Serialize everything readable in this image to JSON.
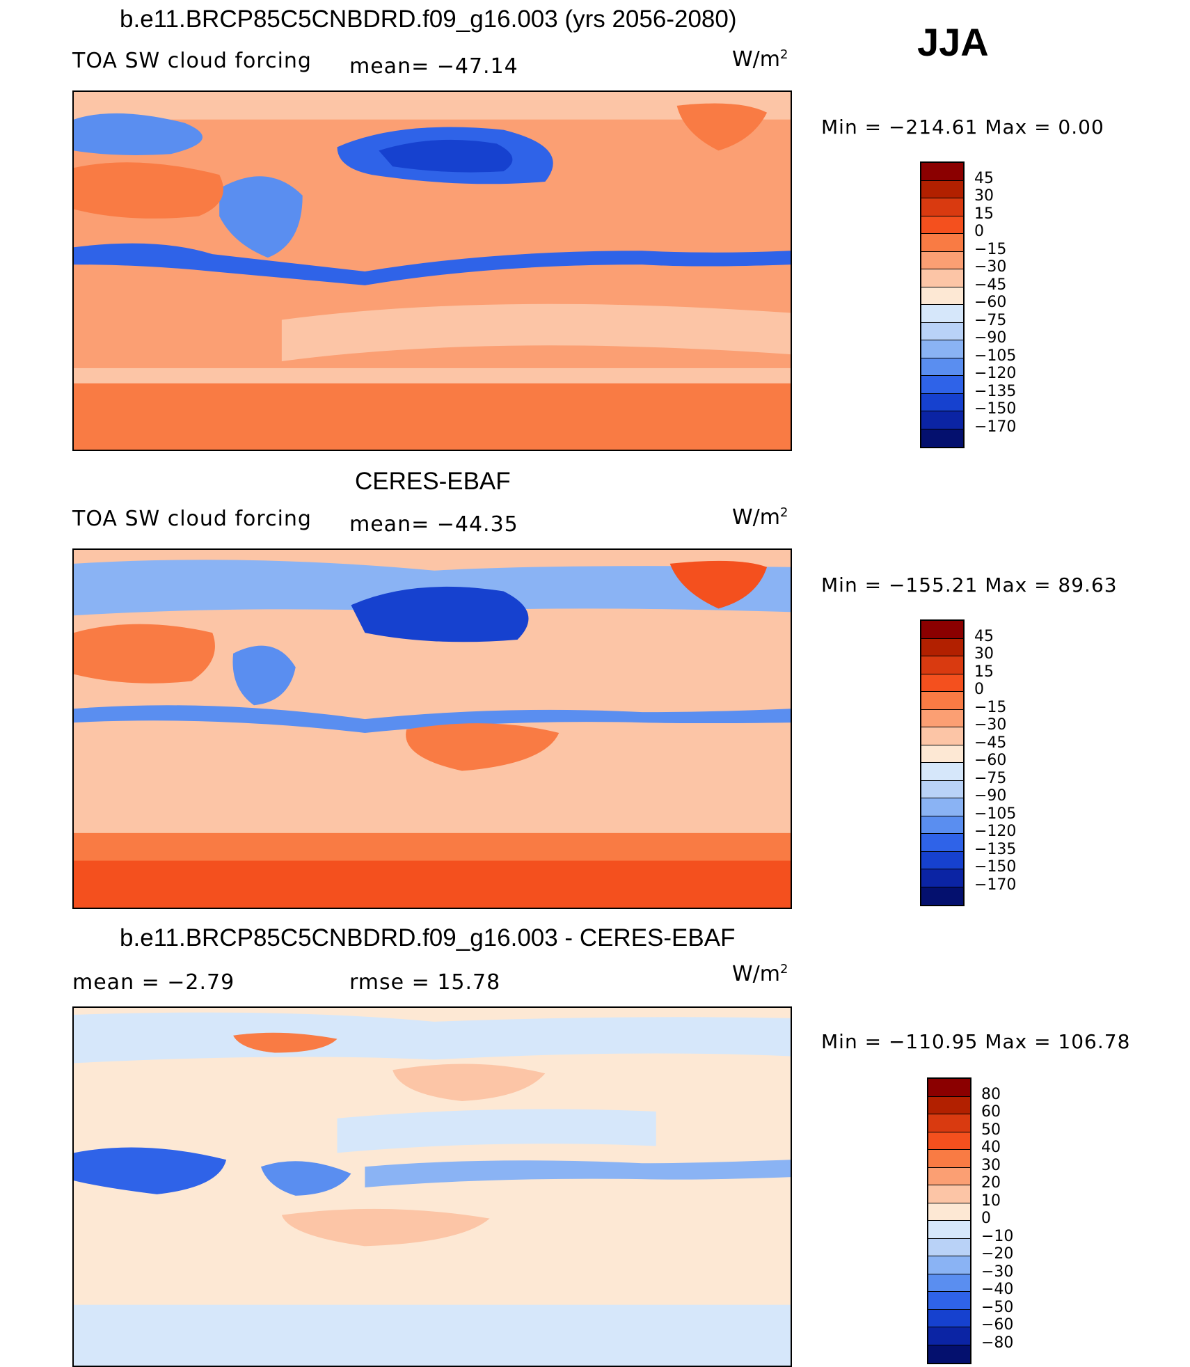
{
  "season": "JJA",
  "units": "W/m",
  "units_sup": "2",
  "panels": [
    {
      "title": "b.e11.BRCP85C5CNBDRD.f09_g16.003 (yrs 2056-2080)",
      "left_label": "TOA SW cloud forcing",
      "mid_label": "mean= −47.14",
      "minmax": "Min = −214.61 Max =    0.00",
      "levels": [
        "45",
        "30",
        "15",
        "0",
        "−15",
        "−30",
        "−45",
        "−60",
        "−75",
        "−90",
        "−105",
        "−120",
        "−135",
        "−150",
        "−170"
      ]
    },
    {
      "title": "CERES-EBAF",
      "left_label": "TOA SW cloud forcing",
      "mid_label": "mean= −44.35",
      "minmax": "Min = −155.21 Max =   89.63",
      "levels": [
        "45",
        "30",
        "15",
        "0",
        "−15",
        "−30",
        "−45",
        "−60",
        "−75",
        "−90",
        "−105",
        "−120",
        "−135",
        "−150",
        "−170"
      ]
    },
    {
      "title": "b.e11.BRCP85C5CNBDRD.f09_g16.003 - CERES-EBAF",
      "left_label": "mean =    −2.79",
      "mid_label": "rmse =    15.78",
      "minmax": "Min = −110.95 Max = 106.78",
      "levels": [
        "80",
        "60",
        "50",
        "40",
        "30",
        "20",
        "10",
        "0",
        "−10",
        "−20",
        "−30",
        "−40",
        "−50",
        "−60",
        "−80"
      ]
    }
  ],
  "colors": {
    "abs_scale": [
      "#8b0000",
      "#b22000",
      "#d93a10",
      "#f4501e",
      "#f97b44",
      "#fb9f73",
      "#fcc5a6",
      "#fde8d4",
      "#d6e7fa",
      "#b9d2f7",
      "#8ab3f4",
      "#5a8ef0",
      "#2f63e8",
      "#1641cf",
      "#0b24a4",
      "#04106e"
    ],
    "diff_scale": [
      "#8b0000",
      "#b22000",
      "#d93a10",
      "#f4501e",
      "#f97b44",
      "#fb9f73",
      "#fcc5a6",
      "#fde8d4",
      "#d6e7fa",
      "#b9d2f7",
      "#8ab3f4",
      "#5a8ef0",
      "#2f63e8",
      "#1641cf",
      "#0b24a4",
      "#04106e"
    ]
  },
  "chart_data": [
    {
      "type": "heatmap",
      "title": "b.e11.BRCP85C5CNBDRD.f09_g16.003 (yrs 2056-2080)",
      "variable": "TOA SW cloud forcing",
      "units": "W/m2",
      "season": "JJA",
      "mean": -47.14,
      "min": -214.61,
      "max": 0.0,
      "contour_levels": [
        45,
        30,
        15,
        0,
        -15,
        -30,
        -45,
        -60,
        -75,
        -90,
        -105,
        -120,
        -135,
        -150,
        -170
      ]
    },
    {
      "type": "heatmap",
      "title": "CERES-EBAF",
      "variable": "TOA SW cloud forcing",
      "units": "W/m2",
      "season": "JJA",
      "mean": -44.35,
      "min": -155.21,
      "max": 89.63,
      "contour_levels": [
        45,
        30,
        15,
        0,
        -15,
        -30,
        -45,
        -60,
        -75,
        -90,
        -105,
        -120,
        -135,
        -150,
        -170
      ]
    },
    {
      "type": "heatmap",
      "title": "b.e11.BRCP85C5CNBDRD.f09_g16.003 - CERES-EBAF",
      "units": "W/m2",
      "season": "JJA",
      "mean": -2.79,
      "rmse": 15.78,
      "min": -110.95,
      "max": 106.78,
      "contour_levels": [
        80,
        60,
        50,
        40,
        30,
        20,
        10,
        0,
        -10,
        -20,
        -30,
        -40,
        -50,
        -60,
        -80
      ]
    }
  ]
}
